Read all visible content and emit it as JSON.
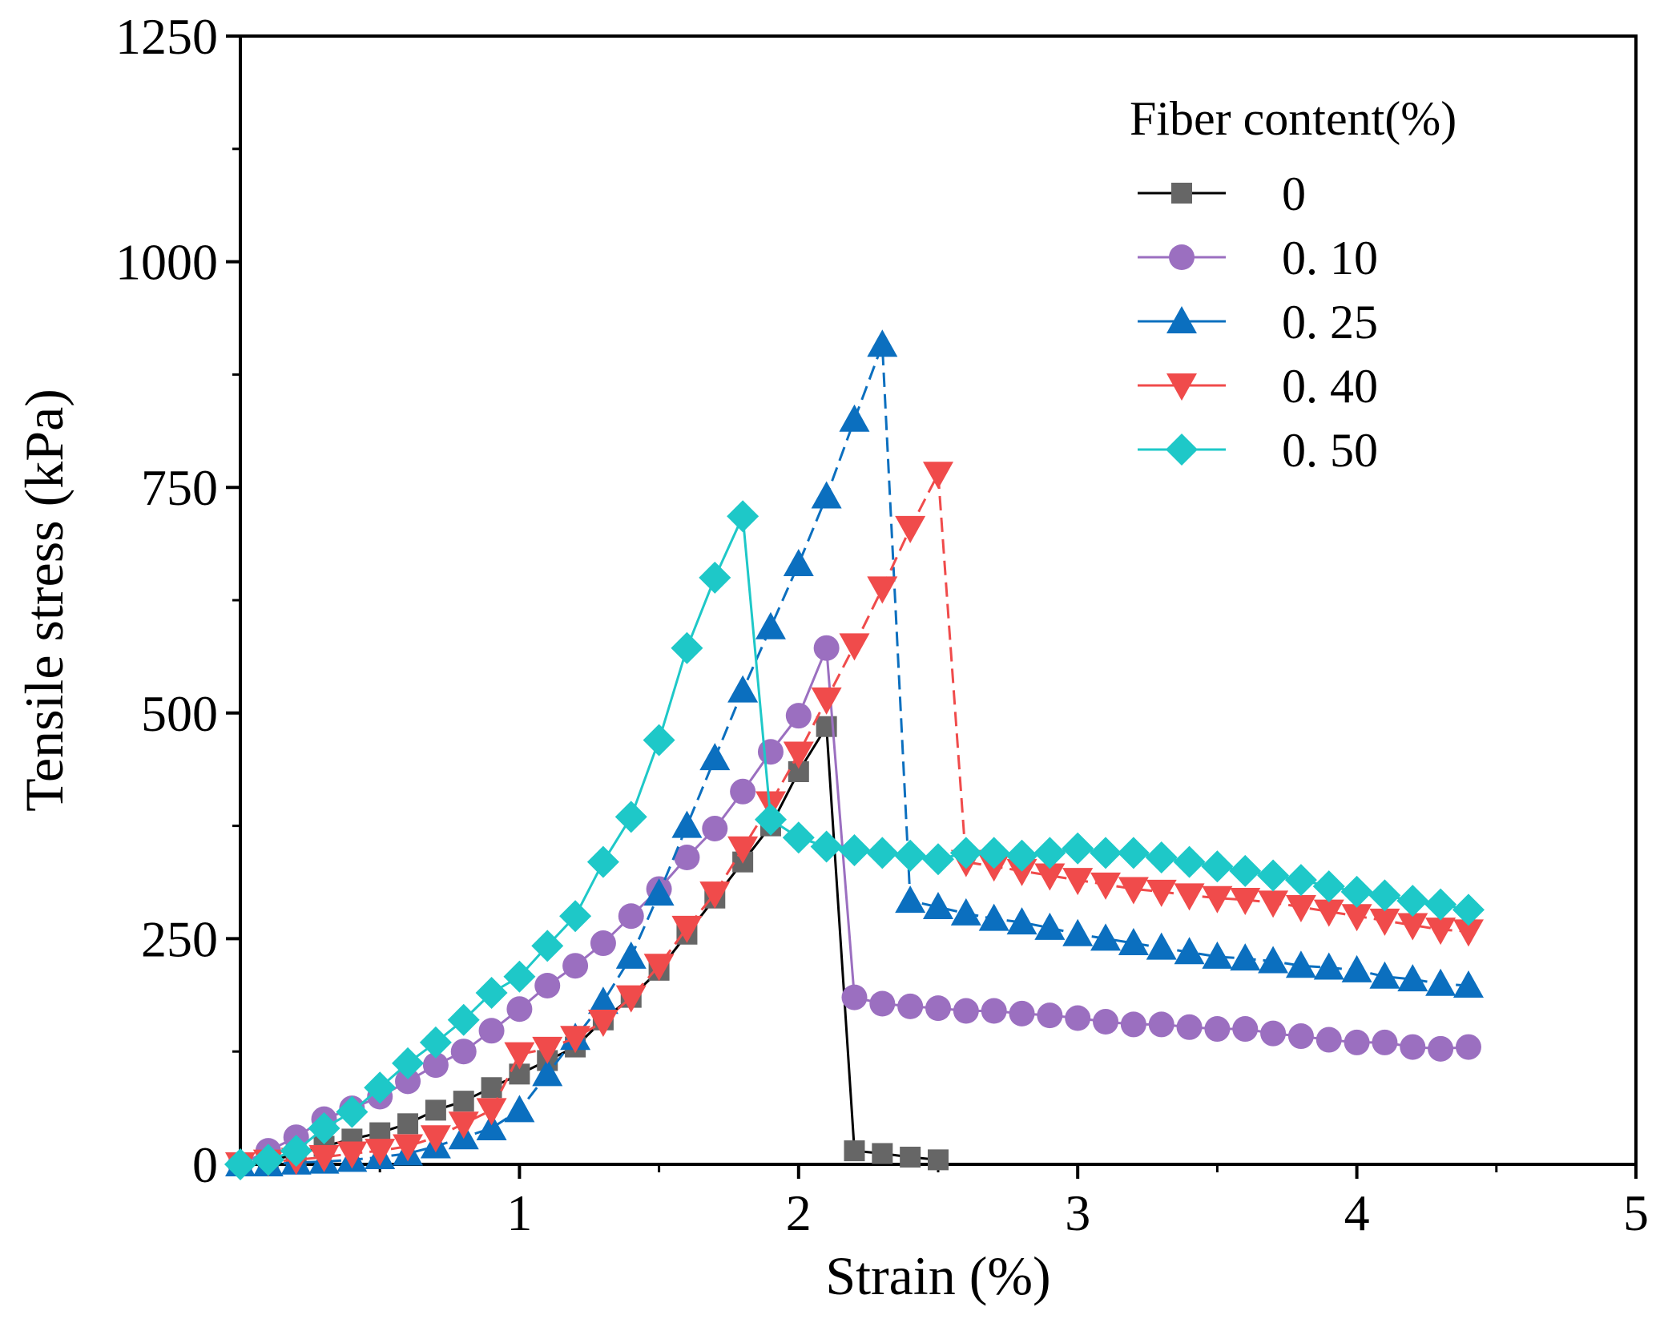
{
  "chart_data": {
    "type": "line",
    "title": "",
    "xlabel": "Strain (%)",
    "ylabel": "Tensile stress (kPa)",
    "xlim": [
      0,
      5
    ],
    "ylim": [
      0,
      1250
    ],
    "xticks": [
      1,
      2,
      3,
      4,
      5
    ],
    "xtick_labels": [
      "1",
      "2",
      "3",
      "4",
      "5"
    ],
    "yticks": [
      0,
      250,
      500,
      750,
      1000,
      1250
    ],
    "ytick_labels": [
      "0",
      "250",
      "500",
      "750",
      "1000",
      "1250"
    ],
    "grid": false,
    "legend": {
      "title": "Fiber content(%)",
      "position": "top-right"
    },
    "series": [
      {
        "name": "0",
        "label": "0",
        "color": "#000000",
        "marker_color": "#666666",
        "marker": "square",
        "dash": "solid",
        "x": [
          0,
          0.1,
          0.2,
          0.3,
          0.4,
          0.5,
          0.6,
          0.7,
          0.8,
          0.9,
          1.0,
          1.1,
          1.2,
          1.3,
          1.4,
          1.5,
          1.6,
          1.7,
          1.8,
          1.9,
          2.0,
          2.1,
          2.2,
          2.3,
          2.4,
          2.5
        ],
        "y": [
          0,
          5,
          10,
          20,
          28,
          35,
          45,
          60,
          70,
          85,
          100,
          115,
          130,
          160,
          185,
          215,
          255,
          295,
          335,
          375,
          435,
          485,
          15,
          12,
          8,
          5
        ]
      },
      {
        "name": "0.10",
        "label": "0. 10",
        "color": "#9b6fc0",
        "marker_color": "#9b6fc0",
        "marker": "circle",
        "dash": "solid",
        "x": [
          0,
          0.1,
          0.2,
          0.3,
          0.4,
          0.5,
          0.6,
          0.7,
          0.8,
          0.9,
          1.0,
          1.1,
          1.2,
          1.3,
          1.4,
          1.5,
          1.6,
          1.7,
          1.8,
          1.9,
          2.0,
          2.1,
          2.2,
          2.3,
          2.4,
          2.5,
          2.6,
          2.7,
          2.8,
          2.9,
          3.0,
          3.1,
          3.2,
          3.3,
          3.4,
          3.5,
          3.6,
          3.7,
          3.8,
          3.9,
          4.0,
          4.1,
          4.2,
          4.3,
          4.4
        ],
        "y": [
          0,
          15,
          30,
          50,
          62,
          75,
          92,
          110,
          125,
          148,
          172,
          198,
          220,
          245,
          275,
          305,
          340,
          372,
          413,
          457,
          497,
          572,
          185,
          178,
          175,
          173,
          170,
          170,
          167,
          165,
          162,
          158,
          155,
          155,
          152,
          150,
          150,
          145,
          142,
          138,
          135,
          135,
          130,
          128,
          130
        ]
      },
      {
        "name": "0.25",
        "label": "0. 25",
        "color": "#0b6fbf",
        "marker_color": "#0b6fbf",
        "marker": "triangle-up",
        "dash": "dash",
        "x": [
          0,
          0.1,
          0.2,
          0.3,
          0.4,
          0.5,
          0.6,
          0.7,
          0.8,
          0.9,
          1.0,
          1.1,
          1.2,
          1.3,
          1.4,
          1.5,
          1.6,
          1.7,
          1.8,
          1.9,
          2.0,
          2.1,
          2.2,
          2.3,
          2.4,
          2.5,
          2.6,
          2.7,
          2.8,
          2.9,
          3.0,
          3.1,
          3.2,
          3.3,
          3.4,
          3.5,
          3.6,
          3.7,
          3.8,
          3.9,
          4.0,
          4.1,
          4.2,
          4.3,
          4.4
        ],
        "y": [
          0,
          0,
          2,
          3,
          5,
          8,
          12,
          20,
          30,
          40,
          60,
          100,
          140,
          180,
          230,
          300,
          375,
          450,
          525,
          595,
          665,
          740,
          825,
          908,
          292,
          285,
          278,
          272,
          268,
          262,
          255,
          250,
          245,
          240,
          235,
          230,
          228,
          225,
          220,
          218,
          215,
          208,
          205,
          200,
          198
        ]
      },
      {
        "name": "0.40",
        "label": "0. 40",
        "color": "#f04b4b",
        "marker_color": "#f04b4b",
        "marker": "triangle-down",
        "dash": "dash",
        "x": [
          0,
          0.1,
          0.2,
          0.3,
          0.4,
          0.5,
          0.6,
          0.7,
          0.8,
          0.9,
          1.0,
          1.1,
          1.2,
          1.3,
          1.4,
          1.5,
          1.6,
          1.7,
          1.8,
          1.9,
          2.0,
          2.1,
          2.2,
          2.3,
          2.4,
          2.5,
          2.6,
          2.7,
          2.8,
          2.9,
          3.0,
          3.1,
          3.2,
          3.3,
          3.4,
          3.5,
          3.6,
          3.7,
          3.8,
          3.9,
          4.0,
          4.1,
          4.2,
          4.3,
          4.4
        ],
        "y": [
          0,
          3,
          5,
          8,
          12,
          15,
          20,
          30,
          45,
          60,
          122,
          128,
          140,
          158,
          185,
          220,
          262,
          300,
          350,
          400,
          455,
          515,
          575,
          638,
          705,
          765,
          335,
          330,
          325,
          320,
          315,
          310,
          305,
          302,
          298,
          295,
          293,
          290,
          285,
          280,
          275,
          270,
          265,
          260,
          258
        ]
      },
      {
        "name": "0.50",
        "label": "0. 50",
        "color": "#1ec8c8",
        "marker_color": "#1ec8c8",
        "marker": "diamond",
        "dash": "solid",
        "x": [
          0,
          0.1,
          0.2,
          0.3,
          0.4,
          0.5,
          0.6,
          0.7,
          0.8,
          0.9,
          1.0,
          1.1,
          1.2,
          1.3,
          1.4,
          1.5,
          1.6,
          1.7,
          1.8,
          1.9,
          2.0,
          2.1,
          2.2,
          2.3,
          2.4,
          2.5,
          2.6,
          2.7,
          2.8,
          2.9,
          3.0,
          3.1,
          3.2,
          3.3,
          3.4,
          3.5,
          3.6,
          3.7,
          3.8,
          3.9,
          4.0,
          4.1,
          4.2,
          4.3,
          4.4
        ],
        "y": [
          0,
          5,
          15,
          40,
          58,
          85,
          112,
          135,
          160,
          190,
          208,
          242,
          275,
          335,
          385,
          470,
          572,
          650,
          718,
          382,
          362,
          352,
          348,
          345,
          342,
          338,
          345,
          345,
          342,
          345,
          350,
          345,
          345,
          340,
          335,
          330,
          325,
          320,
          315,
          308,
          302,
          298,
          292,
          288,
          282
        ]
      }
    ]
  }
}
